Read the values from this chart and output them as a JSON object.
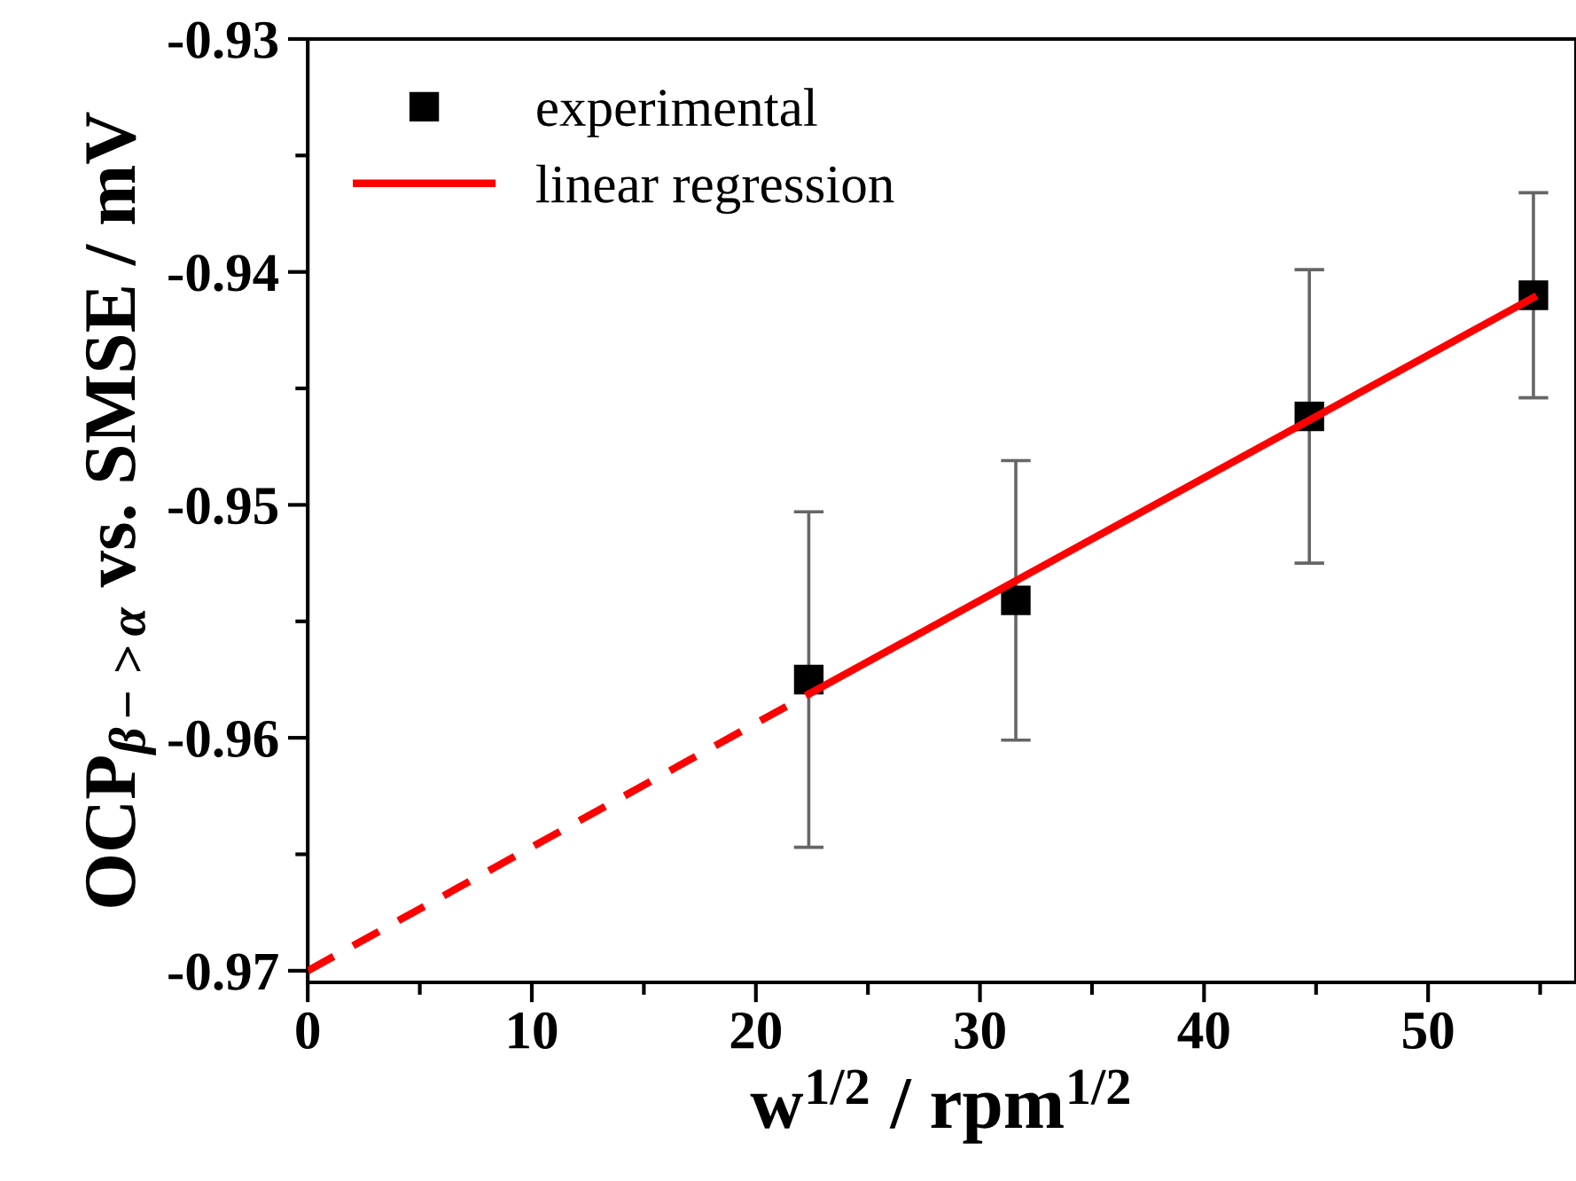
{
  "chart_data": {
    "type": "scatter",
    "xlabel": "w$^{1/2}$ / rpm$^{1/2}$",
    "ylabel": "OCP$_{β−>α}$ vs. SMSE / mV",
    "xlim": [
      0,
      56.6
    ],
    "xticks": [
      0,
      10,
      20,
      30,
      40,
      50
    ],
    "ylim": [
      -0.9705,
      -0.93
    ],
    "yticks": [
      -0.97,
      -0.96,
      -0.95,
      -0.94,
      -0.93
    ],
    "grid": false,
    "legend": "top left",
    "marker": "square",
    "series": [
      {
        "name": "experimental",
        "color": "#000000",
        "x": [
          22.36,
          31.6,
          44.7,
          54.7
        ],
        "values": [
          -0.9575,
          -0.9541,
          -0.9462,
          -0.941
        ],
        "errors": [
          0.0072,
          0.006,
          0.0063,
          0.0044
        ]
      },
      {
        "name": "linear regression",
        "type": "line",
        "color": "#ff0000",
        "line_style": "solid",
        "marker": "none",
        "x": [
          22.4,
          54.7
        ],
        "values": [
          -0.9581,
          -0.9411
        ]
      },
      {
        "type": "line",
        "color": "#ff0000",
        "line_style": "dashed",
        "marker": "none",
        "x": [
          0,
          22.4
        ],
        "values": [
          -0.97,
          -0.9581
        ]
      }
    ]
  }
}
